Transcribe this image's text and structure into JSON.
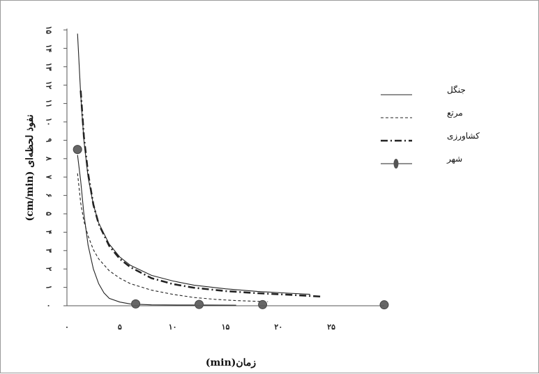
{
  "chart_data": {
    "type": "line",
    "title": "",
    "xlabel": "زمان(min)",
    "ylabel": "نفوذ لحظه‌ای (cm/min)",
    "xlim": [
      0,
      30
    ],
    "ylim": [
      0,
      15
    ],
    "x_ticks": [
      {
        "value": 0,
        "label": "۰"
      },
      {
        "value": 5,
        "label": "۵"
      },
      {
        "value": 10,
        "label": "۱۰"
      },
      {
        "value": 15,
        "label": "۱۵"
      },
      {
        "value": 20,
        "label": "۲۰"
      },
      {
        "value": 25,
        "label": "۲۵"
      }
    ],
    "y_ticks": [
      {
        "value": 0,
        "label": "۰"
      },
      {
        "value": 1,
        "label": "۱"
      },
      {
        "value": 2,
        "label": "۲"
      },
      {
        "value": 3,
        "label": "۳"
      },
      {
        "value": 4,
        "label": "۴"
      },
      {
        "value": 5,
        "label": "۵"
      },
      {
        "value": 6,
        "label": "۶"
      },
      {
        "value": 7,
        "label": "۷"
      },
      {
        "value": 8,
        "label": "۸"
      },
      {
        "value": 9,
        "label": "۹"
      },
      {
        "value": 10,
        "label": "۱۰"
      },
      {
        "value": 11,
        "label": "۱۱"
      },
      {
        "value": 12,
        "label": "۱۲"
      },
      {
        "value": 13,
        "label": "۱۳"
      },
      {
        "value": 14,
        "label": "۱۴"
      },
      {
        "value": 15,
        "label": "۱۵"
      }
    ],
    "grid": false,
    "legend_position": "top-right",
    "series": [
      {
        "name": "جنگل",
        "style": "solid",
        "color": "#222222",
        "points": [
          [
            1.0,
            14.8
          ],
          [
            1.3,
            11.5
          ],
          [
            1.6,
            9.0
          ],
          [
            2,
            7.0
          ],
          [
            2.5,
            5.5
          ],
          [
            3,
            4.5
          ],
          [
            4,
            3.35
          ],
          [
            5,
            2.65
          ],
          [
            6,
            2.2
          ],
          [
            8,
            1.65
          ],
          [
            10,
            1.35
          ],
          [
            12,
            1.12
          ],
          [
            15,
            0.92
          ],
          [
            18,
            0.78
          ],
          [
            21,
            0.68
          ],
          [
            23,
            0.62
          ]
        ]
      },
      {
        "name": "مرتع",
        "style": "dashed",
        "color": "#222222",
        "points": [
          [
            1.0,
            7.2
          ],
          [
            1.3,
            5.6
          ],
          [
            1.6,
            4.6
          ],
          [
            2,
            3.8
          ],
          [
            2.5,
            3.05
          ],
          [
            3,
            2.55
          ],
          [
            4,
            1.9
          ],
          [
            5,
            1.5
          ],
          [
            6,
            1.2
          ],
          [
            8,
            0.85
          ],
          [
            10,
            0.62
          ],
          [
            12,
            0.45
          ],
          [
            14,
            0.35
          ],
          [
            16,
            0.28
          ],
          [
            19,
            0.22
          ]
        ]
      },
      {
        "name": "کشاورزی",
        "style": "dashdot",
        "color": "#222222",
        "points": [
          [
            1.3,
            11.7
          ],
          [
            1.6,
            9.2
          ],
          [
            2,
            7.2
          ],
          [
            2.5,
            5.5
          ],
          [
            3,
            4.45
          ],
          [
            4,
            3.25
          ],
          [
            5,
            2.55
          ],
          [
            6,
            2.1
          ],
          [
            8,
            1.5
          ],
          [
            10,
            1.18
          ],
          [
            12,
            0.98
          ],
          [
            15,
            0.8
          ],
          [
            18,
            0.68
          ],
          [
            21,
            0.6
          ],
          [
            24,
            0.5
          ]
        ]
      },
      {
        "name": "شهر",
        "style": "solid-markers",
        "color": "#222222",
        "points": [
          [
            1.0,
            8.2
          ],
          [
            1.3,
            6.8
          ],
          [
            1.6,
            5.0
          ],
          [
            2,
            3.3
          ],
          [
            2.5,
            2.0
          ],
          [
            3,
            1.2
          ],
          [
            3.5,
            0.7
          ],
          [
            4,
            0.4
          ],
          [
            5,
            0.2
          ],
          [
            6,
            0.1
          ],
          [
            8,
            0.05
          ],
          [
            10.5,
            0.04
          ],
          [
            13,
            0.04
          ],
          [
            16,
            0.03
          ]
        ],
        "markers": [
          [
            1.0,
            8.5
          ],
          [
            6.5,
            0.1
          ],
          [
            12.5,
            0.07
          ],
          [
            18.5,
            0.06
          ],
          [
            30,
            0.05
          ]
        ]
      }
    ]
  }
}
